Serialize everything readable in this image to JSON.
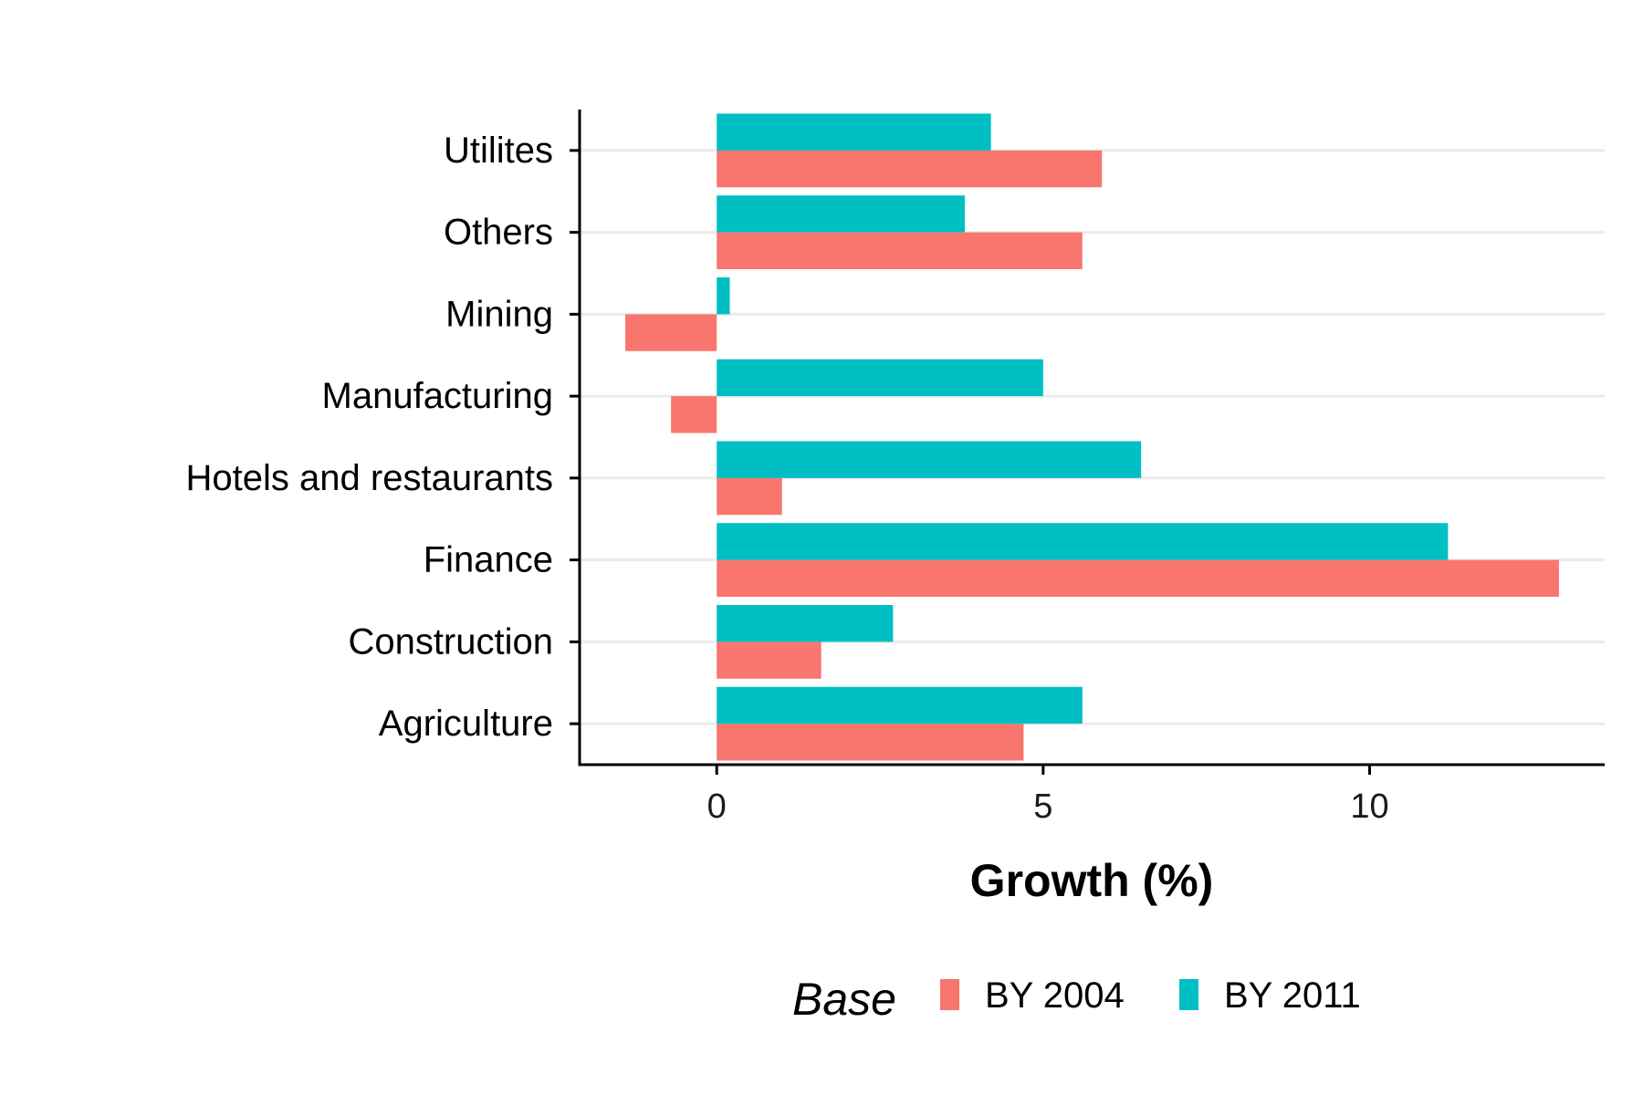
{
  "chart_data": {
    "type": "bar",
    "orientation": "horizontal",
    "categories": [
      "Utilites",
      "Others",
      "Mining",
      "Manufacturing",
      "Hotels and restaurants",
      "Finance",
      "Construction",
      "Agriculture"
    ],
    "series": [
      {
        "name": "BY 2004",
        "color": "#F8766D",
        "values": [
          5.9,
          5.6,
          -1.4,
          -0.7,
          1.0,
          12.9,
          1.6,
          4.7
        ]
      },
      {
        "name": "BY 2011",
        "color": "#00BFC4",
        "values": [
          4.2,
          3.8,
          0.2,
          5.0,
          6.5,
          11.2,
          2.7,
          5.6
        ]
      }
    ],
    "xlabel": "Growth (%)",
    "xlim": [
      -2.1,
      13.6
    ],
    "xticks": [
      0,
      5,
      10
    ],
    "legend": {
      "title": "Base",
      "position": "bottom"
    },
    "grid": {
      "horizontal_major": true,
      "vertical": false
    }
  }
}
